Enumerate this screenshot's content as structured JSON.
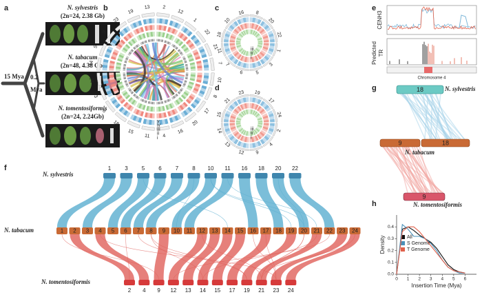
{
  "panel_labels": [
    "a",
    "b",
    "c",
    "d",
    "e",
    "f",
    "g",
    "h"
  ],
  "phylogeny": {
    "species": [
      {
        "name": "N. sylvestris",
        "info": "(2n=24, 2.38 Gb)"
      },
      {
        "name": "N. tabacum",
        "info": "(2n=48, 4.38 Gb)"
      },
      {
        "name": "N. tomentosiformis",
        "info": "(2n=24, 2.24Gb)"
      }
    ],
    "root_age": "15 Mya",
    "node_age": "0.2",
    "node_age_unit": "Mya"
  },
  "circos_b": {
    "chromosomes": [
      "2",
      "12",
      "1",
      "22",
      "21",
      "7",
      "10",
      "8",
      "17",
      "20",
      "16",
      "4",
      "11",
      "15",
      "18",
      "6",
      "3",
      "24",
      "14",
      "5",
      "9",
      "23",
      "19",
      "13"
    ],
    "rings": [
      "v",
      "iv",
      "iii",
      "ii",
      "i"
    ]
  },
  "circos_c": {
    "chromosomes": [
      "8",
      "20",
      "22",
      "1",
      "3",
      "5",
      "6",
      "7",
      "11",
      "18",
      "10",
      "16"
    ],
    "rings": [
      "iii",
      "ii",
      "i"
    ]
  },
  "circos_d": {
    "chromosomes": [
      "19",
      "17",
      "24",
      "2",
      "4",
      "9",
      "12",
      "13",
      "14",
      "15",
      "21",
      "23"
    ],
    "rings": [
      "iii",
      "ii",
      "i"
    ]
  },
  "centromere": {
    "track1": "CENH3",
    "track2_a": "Predicted",
    "track2_b": "TR",
    "axis": "Chromosome 4"
  },
  "synteny": {
    "top": {
      "name": "N. sylvestris",
      "chromosomes": [
        "1",
        "3",
        "5",
        "6",
        "7",
        "8",
        "10",
        "11",
        "16",
        "18",
        "20",
        "22"
      ]
    },
    "middle": {
      "name": "N. tabacum",
      "chromosomes": [
        "1",
        "2",
        "3",
        "4",
        "5",
        "6",
        "7",
        "8",
        "9",
        "10",
        "11",
        "12",
        "13",
        "14",
        "15",
        "16",
        "17",
        "18",
        "19",
        "20",
        "21",
        "22",
        "23",
        "24"
      ]
    },
    "bottom": {
      "name": "N. tomentosiformis",
      "chromosomes": [
        "2",
        "4",
        "9",
        "12",
        "13",
        "14",
        "15",
        "17",
        "19",
        "21",
        "23",
        "24"
      ]
    }
  },
  "synteny_g": {
    "top": {
      "chromosome": "18",
      "name": "N. sylvestris"
    },
    "middle": {
      "chromosomes": [
        "9",
        "18"
      ],
      "name": "N. tabacum"
    },
    "bottom": {
      "chromosome": "9",
      "name": "N. tomentosiformis"
    }
  },
  "insertion_time": {
    "type": "line",
    "x_label": "Insertion Time (Mya)",
    "y_label": "Density",
    "x": [
      0,
      0.5,
      1,
      1.5,
      2,
      2.5,
      3,
      3.5,
      4,
      4.5,
      5,
      5.5,
      6
    ],
    "series": [
      {
        "name": "All",
        "color": "#111111",
        "values": [
          0,
          0.38,
          0.4,
          0.37,
          0.33,
          0.3,
          0.27,
          0.22,
          0.15,
          0.08,
          0.04,
          0.02,
          0.01
        ]
      },
      {
        "name": "S Genome",
        "color": "#4a90b8",
        "values": [
          0,
          0.42,
          0.38,
          0.32,
          0.32,
          0.3,
          0.26,
          0.2,
          0.12,
          0.06,
          0.03,
          0.01,
          0.01
        ]
      },
      {
        "name": "T Genome",
        "color": "#e0604a",
        "values": [
          0,
          0.36,
          0.4,
          0.4,
          0.36,
          0.3,
          0.24,
          0.18,
          0.12,
          0.06,
          0.03,
          0.02,
          0.01
        ]
      }
    ],
    "xlim": [
      0,
      7
    ],
    "ylim": [
      0,
      0.5
    ],
    "xticks": [
      0,
      1,
      2,
      3,
      4,
      5,
      6
    ],
    "yticks": [
      {
        "value": 0,
        "label": "0.0"
      },
      {
        "value": 0.1,
        "label": "0.1"
      },
      {
        "value": 0.2,
        "label": "0.2"
      },
      {
        "value": 0.3,
        "label": "0.3"
      },
      {
        "value": 0.4,
        "label": "0.4"
      }
    ]
  }
}
